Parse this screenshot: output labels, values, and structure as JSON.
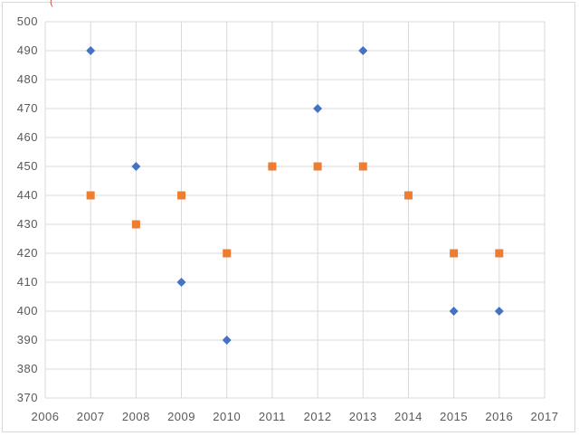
{
  "chart_data": {
    "type": "scatter",
    "title": "",
    "xlabel": "",
    "ylabel": "",
    "xlim": [
      2006,
      2017
    ],
    "ylim": [
      370,
      500
    ],
    "x_ticks": [
      2006,
      2007,
      2008,
      2009,
      2010,
      2011,
      2012,
      2013,
      2014,
      2015,
      2016,
      2017
    ],
    "y_ticks": [
      370,
      380,
      390,
      400,
      410,
      420,
      430,
      440,
      450,
      460,
      470,
      480,
      490,
      500
    ],
    "grid": true,
    "legend": "none",
    "series": [
      {
        "marker": "diamond",
        "color": "#4472c4",
        "points": [
          {
            "x": 2007,
            "y": 490
          },
          {
            "x": 2008,
            "y": 450
          },
          {
            "x": 2009,
            "y": 410
          },
          {
            "x": 2010,
            "y": 390
          },
          {
            "x": 2011,
            "y": 450
          },
          {
            "x": 2012,
            "y": 470
          },
          {
            "x": 2013,
            "y": 490
          },
          {
            "x": 2014,
            "y": 440
          },
          {
            "x": 2015,
            "y": 400
          },
          {
            "x": 2016,
            "y": 400
          }
        ]
      },
      {
        "marker": "square",
        "color": "#ed7d31",
        "points": [
          {
            "x": 2007,
            "y": 440
          },
          {
            "x": 2008,
            "y": 430
          },
          {
            "x": 2009,
            "y": 440
          },
          {
            "x": 2010,
            "y": 420
          },
          {
            "x": 2011,
            "y": 450
          },
          {
            "x": 2012,
            "y": 450
          },
          {
            "x": 2013,
            "y": 450
          },
          {
            "x": 2014,
            "y": 440
          },
          {
            "x": 2015,
            "y": 420
          },
          {
            "x": 2016,
            "y": 420
          }
        ]
      }
    ]
  },
  "colors": {
    "grid": "#d9d9d9",
    "tick_text": "#595959"
  }
}
